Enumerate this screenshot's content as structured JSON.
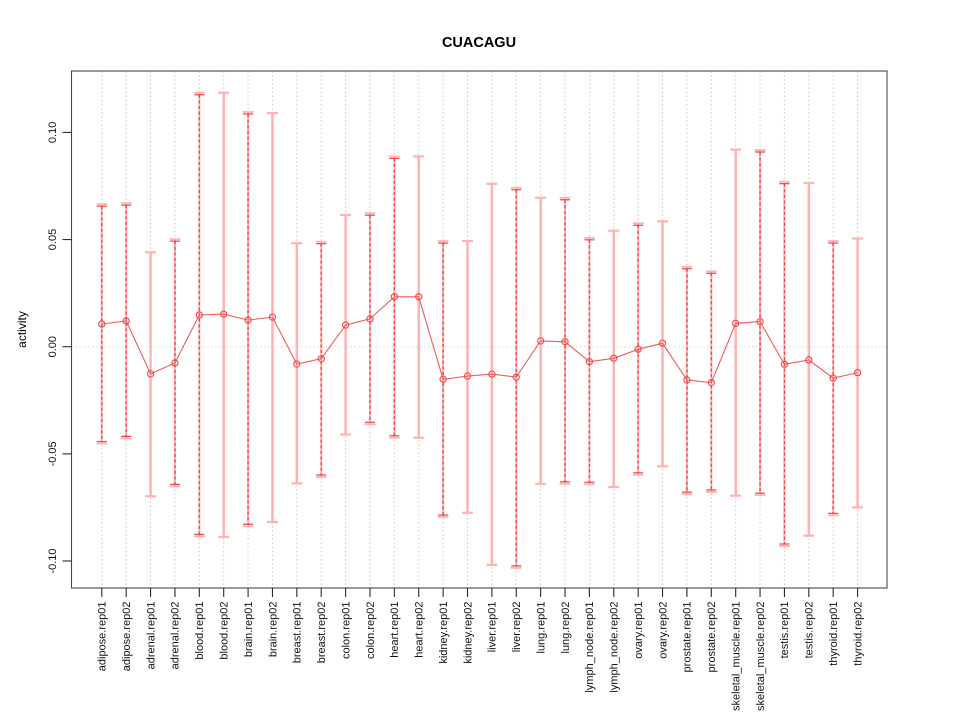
{
  "figure": {
    "title": "CUACAGU",
    "y_axis_title": "activity"
  },
  "chart_data": {
    "type": "line",
    "subtype": "points-with-error-bars",
    "title": "CUACAGU",
    "xlabel": "",
    "ylabel": "activity",
    "ylim": [
      -0.113,
      0.129
    ],
    "yticks": [
      0.1,
      0.05,
      0.0,
      -0.05,
      -0.1
    ],
    "ytick_labels": [
      "0.10",
      "0.05",
      "0.00",
      "-0.05",
      "-0.10"
    ],
    "grid": "vertical dotted gridline at every category; dotted horizontal line at y=0",
    "legend_position": "none",
    "marker": "open-circle",
    "categories": [
      "adipose.rep01",
      "adipose.rep02",
      "adrenal.rep01",
      "adrenal.rep02",
      "blood.rep01",
      "blood.rep02",
      "brain.rep01",
      "brain.rep02",
      "breast.rep01",
      "breast.rep02",
      "colon.rep01",
      "colon.rep02",
      "heart.rep01",
      "heart.rep02",
      "kidney.rep01",
      "kidney.rep02",
      "liver.rep01",
      "liver.rep02",
      "lung.rep01",
      "lung.rep02",
      "lymph_node.rep01",
      "lymph_node.rep02",
      "ovary.rep01",
      "ovary.rep02",
      "prostate.rep01",
      "prostate.rep02",
      "skeletal_muscle.rep01",
      "skeletal_muscle.rep02",
      "testis.rep01",
      "testis.rep02",
      "thyroid.rep01",
      "thyroid.rep02"
    ],
    "series": [
      {
        "name": "activity",
        "values": [
          0.0106,
          0.012,
          -0.0127,
          -0.0076,
          0.0148,
          0.0152,
          0.0124,
          0.0138,
          -0.0081,
          -0.0056,
          0.0101,
          0.013,
          0.0233,
          0.0233,
          -0.0152,
          -0.0137,
          -0.0128,
          -0.0142,
          0.0027,
          0.0023,
          -0.007,
          -0.0054,
          -0.0012,
          0.0016,
          -0.0155,
          -0.0168,
          0.0109,
          0.0117,
          -0.0082,
          -0.0062,
          -0.0147,
          -0.0121
        ],
        "ci_high": [
          0.0665,
          0.067,
          0.0441,
          0.0502,
          0.1185,
          0.1185,
          0.1095,
          0.109,
          0.0483,
          0.049,
          0.0615,
          0.0623,
          0.0888,
          0.0888,
          0.0493,
          0.0493,
          0.076,
          0.0742,
          0.0695,
          0.0695,
          0.0508,
          0.0541,
          0.0576,
          0.0585,
          0.0373,
          0.0352,
          0.092,
          0.0918,
          0.077,
          0.0764,
          0.0493,
          0.0505
        ],
        "ci_low": [
          -0.0452,
          -0.0428,
          -0.0698,
          -0.0652,
          -0.0885,
          -0.0888,
          -0.0838,
          -0.0818,
          -0.0638,
          -0.0608,
          -0.041,
          -0.0362,
          -0.0425,
          -0.0425,
          -0.0795,
          -0.0775,
          -0.1018,
          -0.1032,
          -0.064,
          -0.064,
          -0.0642,
          -0.0655,
          -0.0598,
          -0.0558,
          -0.0688,
          -0.0678,
          -0.0695,
          -0.0693,
          -0.093,
          -0.0882,
          -0.0787,
          -0.075
        ],
        "bar_styles": [
          "dashed",
          "dashed",
          "pink",
          "dashed",
          "dashed",
          "pink",
          "dashed",
          "pink",
          "pink",
          "dashed",
          "pink",
          "dashed",
          "dashed",
          "pink",
          "dashed",
          "pink",
          "pink",
          "dashed",
          "pink",
          "dashed",
          "dashed",
          "pink",
          "dashed",
          "pink",
          "dashed",
          "dashed",
          "pink",
          "dashed",
          "dashed",
          "pink",
          "dashed",
          "pink"
        ]
      }
    ]
  },
  "colors": {
    "bar_pink": "#ffb3b3",
    "bar_red": "#e84545",
    "point": "#ef4d4d",
    "line": "#f15b5b",
    "grid": "#cccccc",
    "zero_line": "#d8d8d8",
    "box": "#4a4a4a",
    "tick": "#2a2a2a",
    "text": "#000000",
    "background": "#ffffff"
  }
}
